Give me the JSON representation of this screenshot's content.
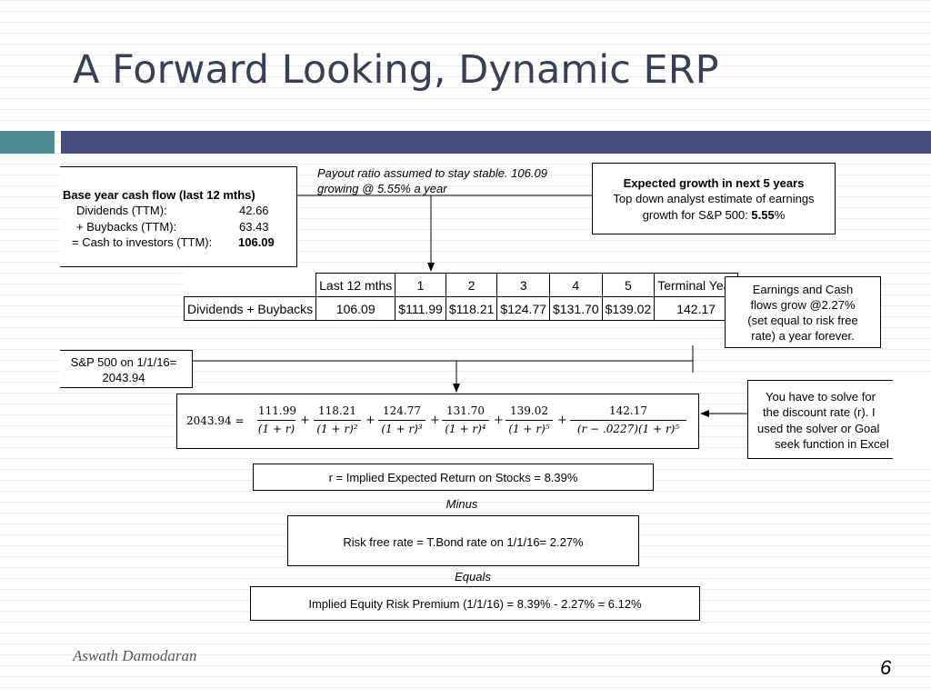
{
  "title": "A Forward Looking, Dynamic ERP",
  "base_box": {
    "heading": "Base year cash flow  (last 12 mths)",
    "line1_label": "Dividends (TTM):",
    "line1_value": "42.66",
    "line2_label": "+ Buybacks (TTM):",
    "line2_value": "63.43",
    "line3_label": "= Cash to investors (TTM):",
    "line3_value": "106.09"
  },
  "payout_note": {
    "line1": "Payout ratio assumed to stay stable. 106.09",
    "line2": "growing @ 5.55% a year"
  },
  "growth_box": {
    "heading": "Expected growth in next 5 years",
    "line1": "Top down analyst estimate of earnings",
    "line2": "growth for S&P 500:",
    "value": "5.55",
    "suffix": "%"
  },
  "table": {
    "headers": [
      "",
      "Last 12 mths",
      "1",
      "2",
      "3",
      "4",
      "5",
      "Terminal Year"
    ],
    "row_label": "Dividends + Buybacks",
    "row_values": [
      "106.09",
      "$111.99",
      "$118.21",
      "$124.77",
      "$131.70",
      "$139.02",
      "142.17"
    ]
  },
  "terminal_box": {
    "line1": "Earnings and Cash",
    "line2": "flows grow @2.27%",
    "line3": "(set equal to risk free",
    "line4": "rate) a year forever."
  },
  "sp_box": {
    "line1": "S&P 500 on 1/1/16=",
    "line2": "2043.94"
  },
  "equation": {
    "lhs": "2043.94 =",
    "terms": [
      {
        "num": "111.99",
        "den": "(1 + r)"
      },
      {
        "num": "118.21",
        "den": "(1 + r)²"
      },
      {
        "num": "124.77",
        "den": "(1 + r)³"
      },
      {
        "num": "131.70",
        "den": "(1 + r)⁴"
      },
      {
        "num": "139.02",
        "den": "(1 + r)⁵"
      },
      {
        "num": "142.17",
        "den": "(r − .0227)(1 + r)⁵"
      }
    ],
    "plus": "+"
  },
  "solve_box": {
    "line1": "You have to solve for",
    "line2": "the discount rate (r). I",
    "line3": "used the solver or Goal",
    "line4": "seek function in Excel"
  },
  "implied_return": "r = Implied Expected Return on Stocks = 8.39%",
  "minus_label": "Minus",
  "risk_free": "Risk free rate = T.Bond rate on 1/1/16= 2.27%",
  "equals_label": "Equals",
  "implied_erp": "Implied Equity Risk Premium (1/1/16) = 8.39% - 2.27% = 6.12%",
  "footer": {
    "author": "Aswath Damodaran",
    "page": "6"
  }
}
